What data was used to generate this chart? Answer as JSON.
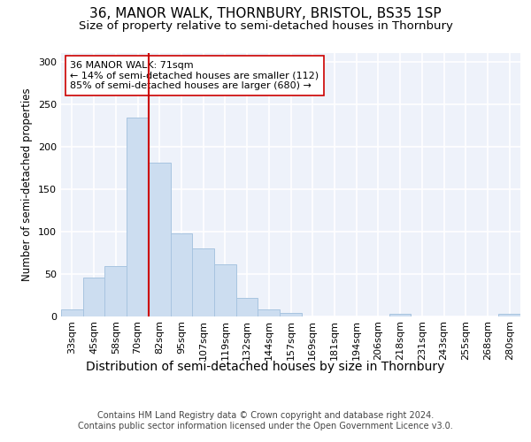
{
  "title": "36, MANOR WALK, THORNBURY, BRISTOL, BS35 1SP",
  "subtitle": "Size of property relative to semi-detached houses in Thornbury",
  "xlabel": "Distribution of semi-detached houses by size in Thornbury",
  "ylabel": "Number of semi-detached properties",
  "categories": [
    "33sqm",
    "45sqm",
    "58sqm",
    "70sqm",
    "82sqm",
    "95sqm",
    "107sqm",
    "119sqm",
    "132sqm",
    "144sqm",
    "157sqm",
    "169sqm",
    "181sqm",
    "194sqm",
    "206sqm",
    "218sqm",
    "231sqm",
    "243sqm",
    "255sqm",
    "268sqm",
    "280sqm"
  ],
  "values": [
    8,
    45,
    59,
    234,
    181,
    97,
    80,
    61,
    21,
    8,
    4,
    0,
    0,
    0,
    0,
    3,
    0,
    0,
    0,
    0,
    3
  ],
  "bar_color": "#ccddf0",
  "bar_edge_color": "#a8c4e0",
  "highlight_color": "#cc0000",
  "annotation_text": "36 MANOR WALK: 71sqm\n← 14% of semi-detached houses are smaller (112)\n85% of semi-detached houses are larger (680) →",
  "annotation_box_color": "#ffffff",
  "annotation_box_edge": "#cc0000",
  "ylim": [
    0,
    310
  ],
  "yticks": [
    0,
    50,
    100,
    150,
    200,
    250,
    300
  ],
  "footer": "Contains HM Land Registry data © Crown copyright and database right 2024.\nContains public sector information licensed under the Open Government Licence v3.0.",
  "title_fontsize": 11,
  "subtitle_fontsize": 9.5,
  "xlabel_fontsize": 10,
  "ylabel_fontsize": 8.5,
  "tick_fontsize": 8,
  "footer_fontsize": 7,
  "background_color": "#eef2fa",
  "grid_color": "#ffffff",
  "fig_bg_color": "#ffffff"
}
